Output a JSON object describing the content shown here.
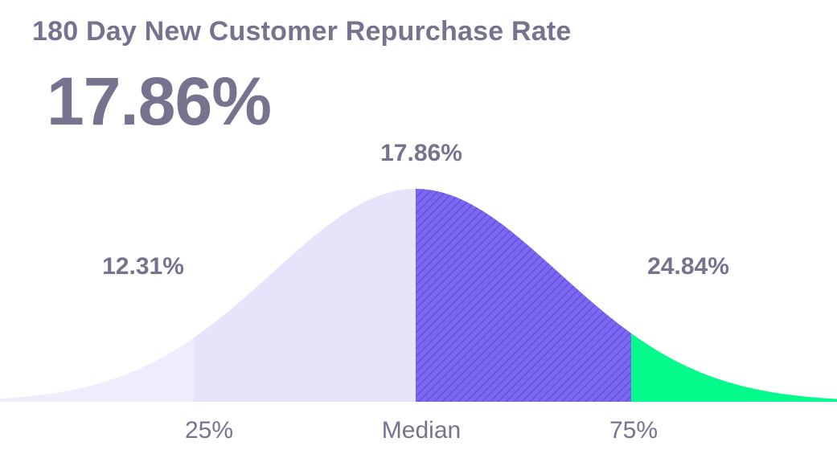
{
  "header": {
    "title": "180 Day New Customer Repurchase Rate",
    "value": "17.86%"
  },
  "chart_data": {
    "type": "area",
    "title": "180 Day New Customer Repurchase Rate",
    "percentiles": [
      {
        "name": "25%",
        "value": 12.31,
        "label": "12.31%"
      },
      {
        "name": "Median",
        "value": 17.86,
        "label": "17.86%"
      },
      {
        "name": "75%",
        "value": 24.84,
        "label": "24.84%"
      }
    ],
    "segments": [
      {
        "range": "below 25%",
        "color": "#efedfb"
      },
      {
        "range": "25% to Median",
        "color": "#e6e3fb"
      },
      {
        "range": "Median to 75%",
        "color": "#7b68f0",
        "pattern": "diagonal-hatch"
      },
      {
        "range": "above 75%",
        "color": "#05fa8c"
      }
    ],
    "tick_labels": [
      "25%",
      "Median",
      "75%"
    ],
    "grid": false,
    "legend": "none"
  }
}
